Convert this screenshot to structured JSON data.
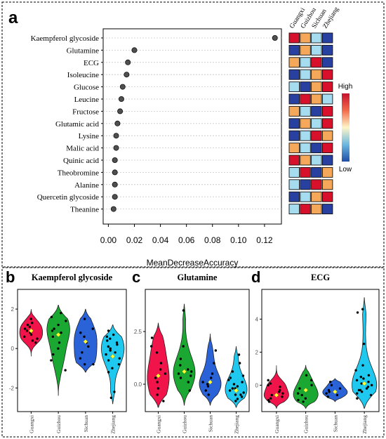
{
  "panels": {
    "a": {
      "letter": "a"
    },
    "b": {
      "letter": "b"
    },
    "c": {
      "letter": "c"
    },
    "d": {
      "letter": "d"
    }
  },
  "colors": {
    "dark_blue": "#2840a0",
    "light_blue": "#a6dcef",
    "orange": "#f5a85a",
    "red": "#d7102b",
    "violin_guangxi": "#f0144a",
    "violin_guizhou": "#1aa832",
    "violin_sichuan": "#2a62d8",
    "violin_zhejiang": "#1ec8ef",
    "mean_marker": "#ffff33"
  },
  "chart_data": [
    {
      "id": "a",
      "type": "scatter",
      "xlabel": "MeanDecreaseAccuracy",
      "xlim": [
        -0.004,
        0.133
      ],
      "xticks": [
        "0.00",
        "0.02",
        "0.04",
        "0.06",
        "0.08",
        "0.10",
        "0.12"
      ],
      "xtick_values": [
        0,
        0.02,
        0.04,
        0.06,
        0.08,
        0.1,
        0.12
      ],
      "grid": "horizontal dashed",
      "categories": [
        "Kaempferol glycoside",
        "Glutamine",
        "ECG",
        "Isoleucine",
        "Glucose",
        "Leucine",
        "Fructose",
        "Glutamic acid",
        "Lysine",
        "Malic acid",
        "Quinic acid",
        "Theobromine",
        "Alanine",
        "Quercetin glycoside",
        "Theanine"
      ],
      "values": [
        0.128,
        0.02,
        0.015,
        0.014,
        0.011,
        0.01,
        0.009,
        0.007,
        0.006,
        0.006,
        0.005,
        0.005,
        0.005,
        0.005,
        0.004
      ],
      "heatmap": {
        "columns": [
          "Guangxi",
          "Guizhou",
          "Sichuan",
          "Zhejiang"
        ],
        "legend_high": "High",
        "legend_low": "Low",
        "levels": [
          [
            4,
            3,
            2,
            1
          ],
          [
            1,
            3,
            2,
            1
          ],
          [
            3,
            2,
            4,
            1
          ],
          [
            1,
            2,
            3,
            4
          ],
          [
            2,
            1,
            3,
            4
          ],
          [
            1,
            4,
            3,
            2
          ],
          [
            3,
            2,
            1,
            4
          ],
          [
            1,
            3,
            2,
            4
          ],
          [
            1,
            2,
            4,
            3
          ],
          [
            3,
            2,
            1,
            4
          ],
          [
            4,
            3,
            2,
            1
          ],
          [
            2,
            4,
            1,
            3
          ],
          [
            2,
            1,
            4,
            3
          ],
          [
            1,
            2,
            3,
            4
          ],
          [
            2,
            4,
            3,
            1
          ]
        ]
      }
    },
    {
      "id": "b",
      "type": "violin",
      "title": "Kaempferol glycoside",
      "categories": [
        "Guangxi",
        "Guizhou",
        "Sichuan",
        "Zhejiang"
      ],
      "ylim": [
        -3.2,
        3.0
      ],
      "yticks": [
        -2,
        0,
        2
      ],
      "range": [
        [
          -0.4,
          2.0
        ],
        [
          -2.4,
          2.2
        ],
        [
          -1.2,
          2.0
        ],
        [
          -2.8,
          1.2
        ]
      ],
      "means": [
        0.9,
        0.7,
        0.35,
        -0.4
      ],
      "points": [
        [
          1.5,
          1.3,
          1.0,
          0.9,
          0.8,
          0.7,
          0.6,
          0.5,
          0.4,
          1.1,
          1.2,
          0.3
        ],
        [
          1.8,
          1.6,
          1.2,
          1.0,
          0.8,
          0.6,
          0.3,
          0.0,
          -0.3,
          -0.6,
          -1.1,
          1.4,
          0.9
        ],
        [
          1.5,
          1.0,
          0.8,
          0.6,
          0.3,
          0.1,
          -0.2,
          -0.5,
          -0.8,
          -0.8
        ],
        [
          0.9,
          0.7,
          0.5,
          0.4,
          0.2,
          0.0,
          -0.1,
          -0.3,
          -0.5,
          -0.6,
          -0.8,
          -1.0,
          -1.2,
          -2.2,
          -2.5,
          0.3,
          -0.2,
          0.6,
          0.1,
          -0.4
        ]
      ]
    },
    {
      "id": "c",
      "type": "violin",
      "title": "Glutamine",
      "categories": [
        "Guangxi",
        "Guizhou",
        "Sichuan",
        "Zhejiang"
      ],
      "ylim": [
        -1.3,
        4.5
      ],
      "yticks": [
        0.0,
        2.5
      ],
      "ytick_labels": [
        "0.0",
        "2.5"
      ],
      "range": [
        [
          -1.1,
          2.9
        ],
        [
          -1.0,
          3.8
        ],
        [
          -1.0,
          2.4
        ],
        [
          -1.1,
          1.8
        ]
      ],
      "means": [
        0.4,
        0.6,
        0.1,
        -0.3
      ],
      "points": [
        [
          2.2,
          1.8,
          1.5,
          1.0,
          0.7,
          0.5,
          0.3,
          0.1,
          -0.2,
          -0.5,
          -0.8
        ],
        [
          3.5,
          1.8,
          1.2,
          0.9,
          0.7,
          0.5,
          0.3,
          0.1,
          -0.3,
          0.6,
          0.4
        ],
        [
          1.6,
          1.0,
          0.5,
          0.3,
          0.1,
          0.0,
          -0.1,
          -0.3,
          -0.5
        ],
        [
          1.4,
          1.0,
          0.6,
          0.4,
          0.2,
          0.0,
          -0.1,
          -0.2,
          -0.3,
          -0.4,
          -0.5,
          -0.6,
          -0.7,
          -0.8,
          0.3,
          -0.5,
          0.1,
          -0.2
        ]
      ]
    },
    {
      "id": "d",
      "type": "violin",
      "title": "ECG",
      "categories": [
        "Guangxi",
        "Guizhou",
        "Sichuan",
        "Zhejiang"
      ],
      "ylim": [
        -1.6,
        5.8
      ],
      "yticks": [
        0,
        2,
        4
      ],
      "range": [
        [
          -1.4,
          1.2
        ],
        [
          -1.4,
          1.2
        ],
        [
          -1.0,
          0.4
        ],
        [
          -1.4,
          5.3
        ]
      ],
      "means": [
        -0.6,
        -0.3,
        -0.4,
        0.1
      ],
      "points": [
        [
          0.3,
          0.1,
          -0.1,
          -0.3,
          -0.4,
          -0.5,
          -0.6,
          -0.7,
          -0.8,
          -0.9,
          -1.0,
          0.0
        ],
        [
          0.6,
          0.3,
          0.0,
          -0.2,
          -0.3,
          -0.5,
          -0.6,
          -0.8,
          -0.9,
          -1.0
        ],
        [
          0.2,
          0.0,
          -0.2,
          -0.3,
          -0.4,
          -0.5,
          -0.6,
          -0.7
        ],
        [
          4.6,
          4.4,
          2.5,
          1.2,
          0.9,
          0.6,
          0.4,
          0.2,
          0.1,
          0.0,
          -0.1,
          -0.2,
          -0.3,
          -0.4,
          -0.5,
          -0.6,
          -0.8,
          0.3,
          -0.3,
          0.5
        ]
      ]
    }
  ]
}
